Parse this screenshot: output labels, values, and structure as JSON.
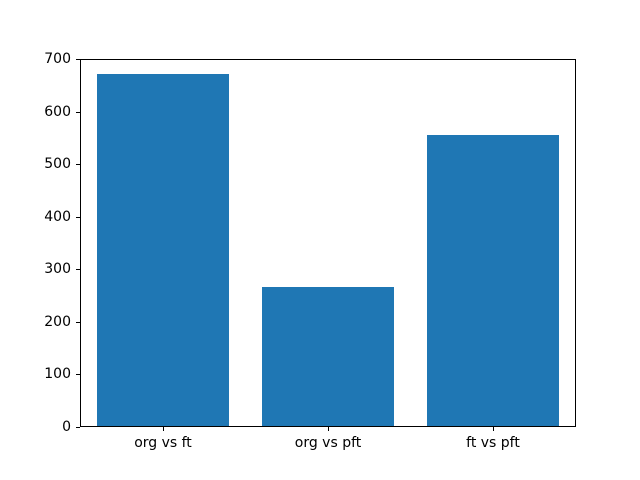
{
  "chart_data": {
    "type": "bar",
    "title": "",
    "xlabel": "",
    "ylabel": "",
    "categories": [
      "org vs ft",
      "org vs pft",
      "ft vs pft"
    ],
    "values": [
      670,
      265,
      553
    ],
    "ylim": [
      0,
      700
    ],
    "yticks": [
      0,
      100,
      200,
      300,
      400,
      500,
      600,
      700
    ],
    "bar_color": "#1f77b4",
    "bar_width_fraction": 0.8,
    "grid": false,
    "legend": null,
    "background_color": "#ffffff",
    "spine_color": "#000000",
    "tick_label_color": "#000000"
  }
}
